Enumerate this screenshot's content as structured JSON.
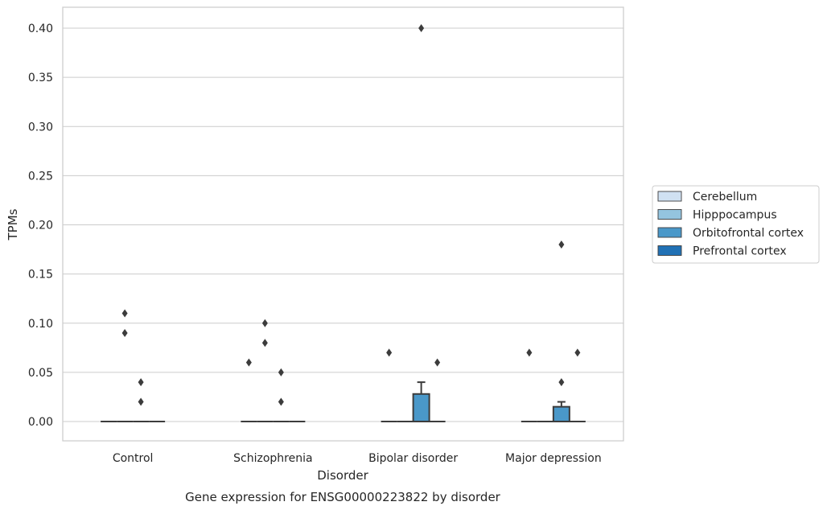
{
  "chart_data": {
    "type": "box",
    "title": "Gene expression for ENSG00000223822 by disorder",
    "xlabel": "Disorder",
    "ylabel": "TPMs",
    "ylim": [
      -0.02,
      0.42
    ],
    "yticks": [
      0.0,
      0.05,
      0.1,
      0.15,
      0.2,
      0.25,
      0.3,
      0.35,
      0.4
    ],
    "ytick_labels": [
      "0.00",
      "0.05",
      "0.10",
      "0.15",
      "0.20",
      "0.25",
      "0.30",
      "0.35",
      "0.40"
    ],
    "grid": true,
    "legend_position": "right",
    "categories": [
      "Control",
      "Schizophrenia",
      "Bipolar disorder",
      "Major depression"
    ],
    "series": [
      {
        "name": "Cerebellum",
        "color": "#d0e1f2",
        "boxes": [
          {
            "category": "Control",
            "whisker_low": 0,
            "q1": 0,
            "median": 0,
            "q3": 0,
            "whisker_high": 0,
            "outliers": []
          },
          {
            "category": "Schizophrenia",
            "whisker_low": 0,
            "q1": 0,
            "median": 0,
            "q3": 0,
            "whisker_high": 0,
            "outliers": [
              0.06
            ]
          },
          {
            "category": "Bipolar disorder",
            "whisker_low": 0,
            "q1": 0,
            "median": 0,
            "q3": 0,
            "whisker_high": 0,
            "outliers": [
              0.07
            ]
          },
          {
            "category": "Major depression",
            "whisker_low": 0,
            "q1": 0,
            "median": 0,
            "q3": 0,
            "whisker_high": 0,
            "outliers": [
              0.07
            ]
          }
        ]
      },
      {
        "name": "Hipppocampus",
        "color": "#94c4df",
        "boxes": [
          {
            "category": "Control",
            "whisker_low": 0,
            "q1": 0,
            "median": 0,
            "q3": 0,
            "whisker_high": 0,
            "outliers": [
              0.11,
              0.09
            ]
          },
          {
            "category": "Schizophrenia",
            "whisker_low": 0,
            "q1": 0,
            "median": 0,
            "q3": 0,
            "whisker_high": 0,
            "outliers": [
              0.1,
              0.08
            ]
          },
          {
            "category": "Bipolar disorder",
            "whisker_low": 0,
            "q1": 0,
            "median": 0,
            "q3": 0,
            "whisker_high": 0,
            "outliers": []
          },
          {
            "category": "Major depression",
            "whisker_low": 0,
            "q1": 0,
            "median": 0,
            "q3": 0,
            "whisker_high": 0,
            "outliers": []
          }
        ]
      },
      {
        "name": "Orbitofrontal cortex",
        "color": "#4a98c9",
        "boxes": [
          {
            "category": "Control",
            "whisker_low": 0,
            "q1": 0,
            "median": 0,
            "q3": 0,
            "whisker_high": 0,
            "outliers": [
              0.04,
              0.02
            ]
          },
          {
            "category": "Schizophrenia",
            "whisker_low": 0,
            "q1": 0,
            "median": 0,
            "q3": 0,
            "whisker_high": 0,
            "outliers": [
              0.05,
              0.02
            ]
          },
          {
            "category": "Bipolar disorder",
            "whisker_low": 0,
            "q1": 0,
            "median": 0,
            "q3": 0.028,
            "whisker_high": 0.04,
            "outliers": [
              0.4
            ]
          },
          {
            "category": "Major depression",
            "whisker_low": 0,
            "q1": 0,
            "median": 0,
            "q3": 0.015,
            "whisker_high": 0.02,
            "outliers": [
              0.18,
              0.04
            ]
          }
        ]
      },
      {
        "name": "Prefrontal cortex",
        "color": "#2171b5",
        "boxes": [
          {
            "category": "Control",
            "whisker_low": 0,
            "q1": 0,
            "median": 0,
            "q3": 0,
            "whisker_high": 0,
            "outliers": []
          },
          {
            "category": "Schizophrenia",
            "whisker_low": 0,
            "q1": 0,
            "median": 0,
            "q3": 0,
            "whisker_high": 0,
            "outliers": []
          },
          {
            "category": "Bipolar disorder",
            "whisker_low": 0,
            "q1": 0,
            "median": 0,
            "q3": 0,
            "whisker_high": 0,
            "outliers": [
              0.06
            ]
          },
          {
            "category": "Major depression",
            "whisker_low": 0,
            "q1": 0,
            "median": 0,
            "q3": 0,
            "whisker_high": 0,
            "outliers": [
              0.07
            ]
          }
        ]
      }
    ]
  },
  "colors": {
    "grid": "#cccccc",
    "frame": "#cccccc",
    "box_edge": "#3c3c3c",
    "outlier": "#3c3c3c"
  }
}
